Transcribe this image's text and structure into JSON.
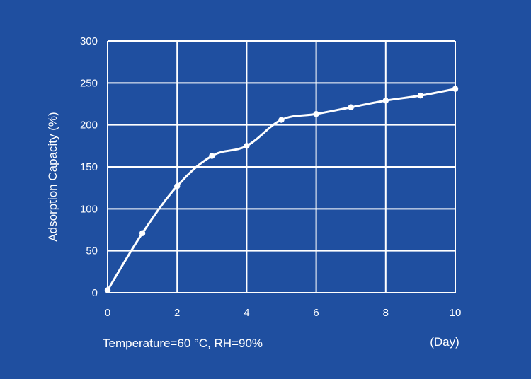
{
  "colors": {
    "background": "#1f4fa0",
    "foreground": "#ffffff"
  },
  "chart_data": {
    "type": "line",
    "title": "",
    "xlabel": "(Day)",
    "ylabel": "Adsorption Capacity (%)",
    "xlim": [
      0,
      10
    ],
    "ylim": [
      0,
      300
    ],
    "x_ticks": [
      0,
      2,
      4,
      6,
      8,
      10
    ],
    "y_ticks": [
      0,
      50,
      100,
      150,
      200,
      250,
      300
    ],
    "x_grid": [
      0,
      2,
      4,
      6,
      8,
      10
    ],
    "y_grid": [
      0,
      50,
      100,
      150,
      200,
      250,
      300
    ],
    "grid": true,
    "annotation": "Temperature=60 °C, RH=90%",
    "series": [
      {
        "name": "Adsorption Capacity",
        "x": [
          0,
          1,
          2,
          3,
          4,
          5,
          6,
          7,
          8,
          9,
          10
        ],
        "y": [
          3,
          71,
          127,
          163,
          175,
          206,
          213,
          221,
          229,
          235,
          243
        ]
      }
    ]
  }
}
